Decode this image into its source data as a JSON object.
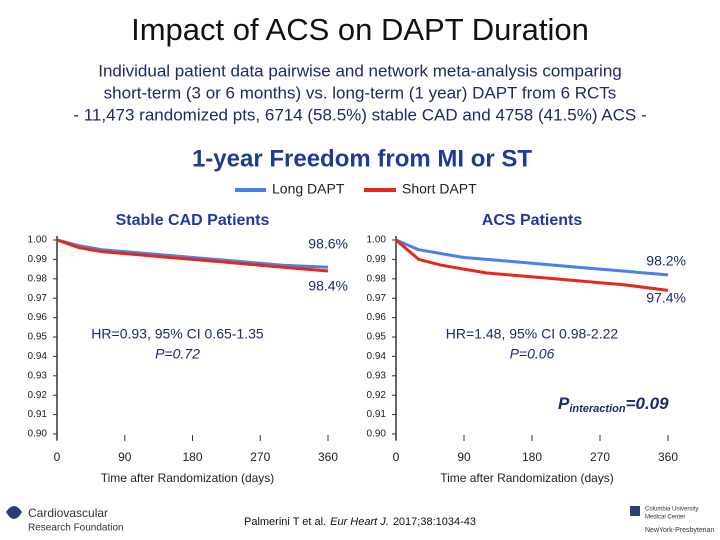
{
  "header": {
    "title": "Impact of ACS on DAPT Duration",
    "subtitle_lines": [
      "Individual patient data pairwise and network meta-analysis comparing",
      "short-term (3 or 6 months) vs. long-term (1 year) DAPT from 6 RCTs",
      "- 11,473 randomized pts, 6714 (58.5%) stable CAD and 4758 (41.5%) ACS -"
    ]
  },
  "panel_title": "1-year Freedom from MI or ST",
  "chart_data": [
    {
      "type": "line",
      "title": "Stable CAD Patients",
      "xlabel": "Time after Randomization (days)",
      "x": [
        0,
        30,
        60,
        90,
        120,
        150,
        180,
        210,
        240,
        270,
        300,
        330,
        360
      ],
      "series": [
        {
          "name": "Long DAPT",
          "color": "#4a7ff0",
          "values": [
            1,
            0.997,
            0.995,
            0.994,
            0.993,
            0.992,
            0.991,
            0.99,
            0.989,
            0.988,
            0.987,
            0.9865,
            0.986
          ]
        },
        {
          "name": "Short DAPT",
          "color": "#e8261a",
          "values": [
            1,
            0.996,
            0.994,
            0.993,
            0.992,
            0.991,
            0.99,
            0.989,
            0.988,
            0.987,
            0.986,
            0.985,
            0.984
          ]
        }
      ],
      "xlim": [
        0,
        360
      ],
      "xticks": [
        0,
        90,
        180,
        270,
        360
      ],
      "ylim": [
        0.9,
        1
      ],
      "yticks": [
        {
          "value": 0.9,
          "label": "0.90"
        },
        0.91,
        0.92,
        0.93,
        0.94,
        0.95,
        0.96,
        0.97,
        0.98,
        0.99,
        {
          "value": 1,
          "label": "1.00"
        }
      ],
      "end_labels": [
        "98.6%",
        "98.4%"
      ],
      "hr": "HR=0.93, 95% CI 0.65-1.35",
      "p": "P=0.72"
    },
    {
      "type": "line",
      "title": "ACS Patients",
      "xlabel": "Time after Randomization (days)",
      "x": [
        0,
        30,
        60,
        90,
        120,
        150,
        180,
        210,
        240,
        270,
        300,
        330,
        360
      ],
      "series": [
        {
          "color": "#4a7ff0",
          "values": [
            1,
            0.995,
            0.993,
            0.991,
            0.99,
            0.989,
            0.988,
            0.987,
            0.986,
            0.985,
            0.984,
            0.983,
            0.982
          ]
        },
        {
          "color": "#e8261a",
          "values": [
            1,
            0.99,
            0.987,
            0.985,
            0.983,
            0.982,
            0.981,
            0.98,
            0.979,
            0.978,
            0.977,
            0.9755,
            0.974
          ]
        }
      ],
      "xlim": [
        0,
        360
      ],
      "xticks": [
        0,
        90,
        180,
        270,
        360
      ],
      "ylim": [
        0.9,
        1
      ],
      "yticks": [
        {
          "value": 0.9,
          "label": "0.90"
        },
        0.91,
        0.92,
        0.93,
        0.94,
        0.95,
        0.96,
        0.97,
        0.98,
        0.99,
        {
          "value": 1,
          "label": "1.00"
        }
      ],
      "end_labels": [
        "98.2%",
        "97.4%"
      ],
      "hr": "HR=1.48, 95% CI 0.98-2.22",
      "p": "P=0.06"
    }
  ],
  "interaction": {
    "p": "P",
    "sub": "interaction",
    "value": "=0.09"
  },
  "citation": {
    "authors": "Palmerini T et al.",
    "journal": "Eur Heart J.",
    "ref": "2017;38:1034-43"
  },
  "logos": {
    "crf": [
      "Cardiovascular",
      "Research Foundation"
    ],
    "columbia": [
      "Columbia University",
      "Medical Center"
    ],
    "nyp": "NewYork-Presbyterian"
  }
}
